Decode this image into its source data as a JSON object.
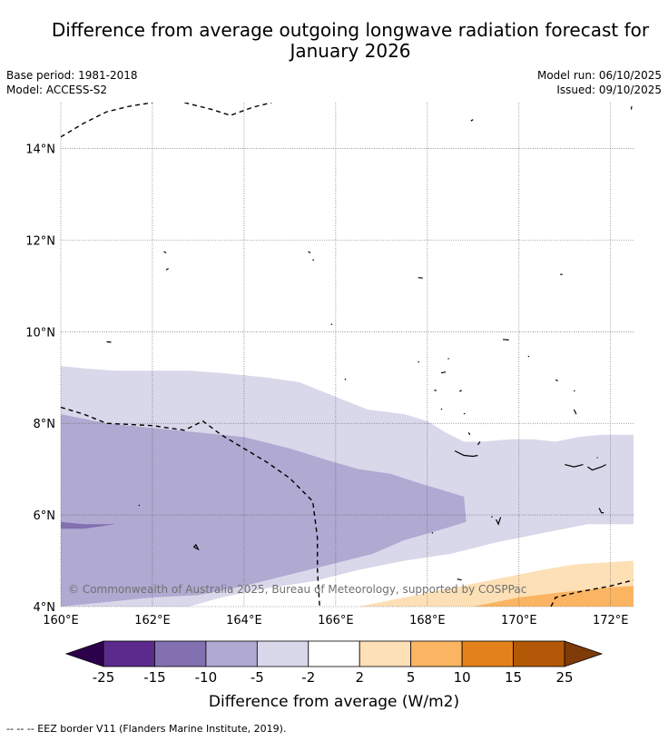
{
  "header": {
    "title_line1": "Difference from average outgoing longwave radiation forecast for",
    "title_line2": "January 2026",
    "base_period": "Base period: 1981-2018",
    "model": "Model: ACCESS-S2",
    "model_run": "Model run: 06/10/2025",
    "issued": "Issued: 09/10/2025"
  },
  "copyright": "© Commonwealth of Australia 2025, Bureau of Meteorology, supported by COSPPac",
  "footnote": "--  --  -- EEZ border V11 (Flanders Marine Institute, 2019).",
  "chart_data": {
    "type": "heatmap",
    "title": "Difference from average outgoing longwave radiation forecast for January 2026",
    "xlabel": "",
    "ylabel": "",
    "xlim": [
      160.0,
      172.5
    ],
    "ylim": [
      4.0,
      15.0
    ],
    "x_ticks": [
      160,
      162,
      164,
      166,
      168,
      170,
      172
    ],
    "x_tick_labels": [
      "160°E",
      "162°E",
      "164°E",
      "166°E",
      "168°E",
      "170°E",
      "172°E"
    ],
    "y_ticks": [
      4,
      6,
      8,
      10,
      12,
      14
    ],
    "y_tick_labels": [
      "4°N",
      "6°N",
      "8°N",
      "10°N",
      "12°N",
      "14°N"
    ],
    "colorbar": {
      "label": "Difference from average (W/m2)",
      "tick_labels": [
        "-25",
        "-15",
        "-10",
        "-5",
        "-2",
        "2",
        "5",
        "10",
        "15",
        "25"
      ],
      "bins": [
        {
          "from": -25,
          "to": -15,
          "color": "#5b2a8c"
        },
        {
          "from": -15,
          "to": -10,
          "color": "#8270b0"
        },
        {
          "from": -10,
          "to": -5,
          "color": "#b0a9d2"
        },
        {
          "from": -5,
          "to": -2,
          "color": "#d9d8ea"
        },
        {
          "from": -2,
          "to": 2,
          "color": "#ffffff"
        },
        {
          "from": 2,
          "to": 5,
          "color": "#fde0b6"
        },
        {
          "from": 5,
          "to": 10,
          "color": "#fbb562"
        },
        {
          "from": 10,
          "to": 15,
          "color": "#e3821a"
        },
        {
          "from": 15,
          "to": 25,
          "color": "#b35806"
        }
      ],
      "under_color": "#2d004b",
      "over_color": "#7f3b08"
    },
    "regions": [
      {
        "name": "-5 to -2",
        "color": "#d9d8ea",
        "points": [
          [
            160.0,
            9.25
          ],
          [
            160.5,
            9.2
          ],
          [
            161.2,
            9.15
          ],
          [
            162.0,
            9.15
          ],
          [
            162.8,
            9.15
          ],
          [
            163.5,
            9.1
          ],
          [
            164.5,
            9.0
          ],
          [
            165.2,
            8.9
          ],
          [
            165.7,
            8.7
          ],
          [
            166.2,
            8.5
          ],
          [
            166.7,
            8.3
          ],
          [
            167.5,
            8.2
          ],
          [
            168.0,
            8.05
          ],
          [
            168.4,
            7.8
          ],
          [
            168.8,
            7.6
          ],
          [
            169.2,
            7.6
          ],
          [
            169.8,
            7.65
          ],
          [
            170.3,
            7.65
          ],
          [
            170.8,
            7.6
          ],
          [
            171.3,
            7.7
          ],
          [
            171.8,
            7.75
          ],
          [
            172.2,
            7.75
          ],
          [
            172.5,
            7.75
          ],
          [
            172.5,
            5.8
          ],
          [
            171.5,
            5.8
          ],
          [
            170.5,
            5.6
          ],
          [
            169.5,
            5.4
          ],
          [
            168.5,
            5.15
          ],
          [
            167.5,
            5.0
          ],
          [
            166.5,
            4.8
          ],
          [
            165.5,
            4.55
          ],
          [
            164.5,
            4.4
          ],
          [
            163.5,
            4.2
          ],
          [
            162.8,
            4.0
          ],
          [
            160.0,
            4.0
          ]
        ]
      },
      {
        "name": "-10 to -5",
        "color": "#b0a9d2",
        "points": [
          [
            160.0,
            8.2
          ],
          [
            161.0,
            8.0
          ],
          [
            162.0,
            7.9
          ],
          [
            163.0,
            7.8
          ],
          [
            164.0,
            7.7
          ],
          [
            165.0,
            7.45
          ],
          [
            165.8,
            7.2
          ],
          [
            166.5,
            7.0
          ],
          [
            167.2,
            6.9
          ],
          [
            167.8,
            6.7
          ],
          [
            168.3,
            6.55
          ],
          [
            168.8,
            6.4
          ],
          [
            168.85,
            5.85
          ],
          [
            168.2,
            5.65
          ],
          [
            167.5,
            5.45
          ],
          [
            166.8,
            5.15
          ],
          [
            166.0,
            4.95
          ],
          [
            165.0,
            4.7
          ],
          [
            164.0,
            4.45
          ],
          [
            163.0,
            4.25
          ],
          [
            162.0,
            4.2
          ],
          [
            161.0,
            4.1
          ],
          [
            160.0,
            4.0
          ]
        ]
      },
      {
        "name": "-15 to -10",
        "color": "#8270b0",
        "points": [
          [
            160.0,
            5.85
          ],
          [
            160.5,
            5.8
          ],
          [
            161.2,
            5.8
          ],
          [
            160.5,
            5.7
          ],
          [
            160.0,
            5.7
          ]
        ]
      },
      {
        "name": "2 to 5",
        "color": "#fde0b6",
        "points": [
          [
            166.5,
            4.0
          ],
          [
            167.5,
            4.2
          ],
          [
            168.5,
            4.4
          ],
          [
            169.5,
            4.6
          ],
          [
            170.5,
            4.8
          ],
          [
            171.2,
            4.92
          ],
          [
            172.5,
            5.0
          ],
          [
            172.5,
            4.0
          ]
        ]
      },
      {
        "name": "5 to 10",
        "color": "#fbb562",
        "points": [
          [
            169.0,
            4.0
          ],
          [
            170.0,
            4.2
          ],
          [
            171.0,
            4.32
          ],
          [
            172.0,
            4.42
          ],
          [
            172.5,
            4.45
          ],
          [
            172.5,
            4.0
          ]
        ]
      }
    ],
    "eez_border_lines": [
      [
        [
          160.0,
          14.25
        ],
        [
          160.5,
          14.55
        ],
        [
          161.0,
          14.8
        ],
        [
          161.5,
          14.92
        ],
        [
          162.0,
          15.0
        ]
      ],
      [
        [
          162.7,
          15.0
        ],
        [
          163.3,
          14.85
        ],
        [
          163.7,
          14.72
        ],
        [
          164.2,
          14.9
        ],
        [
          164.6,
          15.0
        ]
      ],
      [
        [
          160.0,
          8.35
        ],
        [
          160.5,
          8.2
        ],
        [
          161.0,
          8.0
        ],
        [
          162.0,
          7.95
        ],
        [
          162.7,
          7.85
        ],
        [
          163.1,
          8.05
        ],
        [
          163.5,
          7.75
        ],
        [
          164.0,
          7.45
        ],
        [
          164.5,
          7.15
        ],
        [
          165.0,
          6.8
        ],
        [
          165.5,
          6.3
        ],
        [
          165.6,
          5.5
        ],
        [
          165.6,
          4.8
        ],
        [
          165.65,
          4.0
        ]
      ],
      [
        [
          170.7,
          4.0
        ],
        [
          170.8,
          4.2
        ],
        [
          171.3,
          4.32
        ],
        [
          172.0,
          4.45
        ],
        [
          172.5,
          4.58
        ]
      ]
    ],
    "coastlines": [
      [
        [
          168.95,
          14.6
        ],
        [
          169.0,
          14.63
        ]
      ],
      [
        [
          172.45,
          14.85
        ],
        [
          172.46,
          14.92
        ]
      ],
      [
        [
          162.25,
          11.75
        ],
        [
          162.3,
          11.72
        ]
      ],
      [
        [
          162.3,
          11.35
        ],
        [
          162.35,
          11.38
        ]
      ],
      [
        [
          165.4,
          11.75
        ],
        [
          165.45,
          11.72
        ]
      ],
      [
        [
          165.5,
          11.55
        ],
        [
          165.52,
          11.58
        ]
      ],
      [
        [
          167.8,
          11.18
        ],
        [
          167.9,
          11.17
        ]
      ],
      [
        [
          170.9,
          11.25
        ],
        [
          170.95,
          11.25
        ]
      ],
      [
        [
          161.0,
          9.78
        ],
        [
          161.1,
          9.77
        ]
      ],
      [
        [
          165.9,
          10.15
        ],
        [
          165.92,
          10.17
        ]
      ],
      [
        [
          167.8,
          9.33
        ],
        [
          167.82,
          9.35
        ]
      ],
      [
        [
          168.45,
          9.4
        ],
        [
          168.47,
          9.42
        ]
      ],
      [
        [
          168.3,
          9.1
        ],
        [
          168.4,
          9.12
        ]
      ],
      [
        [
          169.65,
          9.83
        ],
        [
          169.78,
          9.82
        ]
      ],
      [
        [
          166.2,
          8.95
        ],
        [
          166.22,
          8.97
        ]
      ],
      [
        [
          168.7,
          8.7
        ],
        [
          168.75,
          8.72
        ]
      ],
      [
        [
          168.3,
          8.3
        ],
        [
          168.32,
          8.32
        ]
      ],
      [
        [
          168.15,
          8.72
        ],
        [
          168.2,
          8.72
        ]
      ],
      [
        [
          168.8,
          8.2
        ],
        [
          168.82,
          8.22
        ]
      ],
      [
        [
          170.2,
          9.45
        ],
        [
          170.22,
          9.47
        ]
      ],
      [
        [
          170.8,
          8.95
        ],
        [
          170.85,
          8.93
        ]
      ],
      [
        [
          171.2,
          8.7
        ],
        [
          171.22,
          8.72
        ]
      ],
      [
        [
          171.2,
          8.3
        ],
        [
          171.25,
          8.2
        ]
      ],
      [
        [
          168.9,
          7.8
        ],
        [
          168.93,
          7.75
        ]
      ],
      [
        [
          168.6,
          7.4
        ],
        [
          168.8,
          7.3
        ],
        [
          169.0,
          7.28
        ],
        [
          169.1,
          7.3
        ]
      ],
      [
        [
          169.1,
          7.53
        ],
        [
          169.15,
          7.6
        ]
      ],
      [
        [
          171.0,
          7.1
        ],
        [
          171.2,
          7.05
        ],
        [
          171.4,
          7.1
        ]
      ],
      [
        [
          171.5,
          7.05
        ],
        [
          171.6,
          6.98
        ],
        [
          171.8,
          7.05
        ],
        [
          171.9,
          7.1
        ]
      ],
      [
        [
          171.7,
          7.25
        ],
        [
          171.72,
          7.25
        ]
      ],
      [
        [
          171.75,
          6.15
        ],
        [
          171.8,
          6.05
        ],
        [
          171.85,
          6.05
        ]
      ],
      [
        [
          169.5,
          5.9
        ],
        [
          169.55,
          5.8
        ],
        [
          169.6,
          5.95
        ]
      ],
      [
        [
          169.4,
          5.95
        ],
        [
          169.42,
          5.97
        ]
      ],
      [
        [
          161.7,
          6.2
        ],
        [
          161.72,
          6.22
        ]
      ],
      [
        [
          162.9,
          5.3
        ],
        [
          163.0,
          5.25
        ],
        [
          162.95,
          5.35
        ],
        [
          162.9,
          5.3
        ]
      ],
      [
        [
          168.1,
          5.6
        ],
        [
          168.12,
          5.62
        ]
      ],
      [
        [
          168.65,
          4.6
        ],
        [
          168.75,
          4.58
        ]
      ]
    ]
  }
}
